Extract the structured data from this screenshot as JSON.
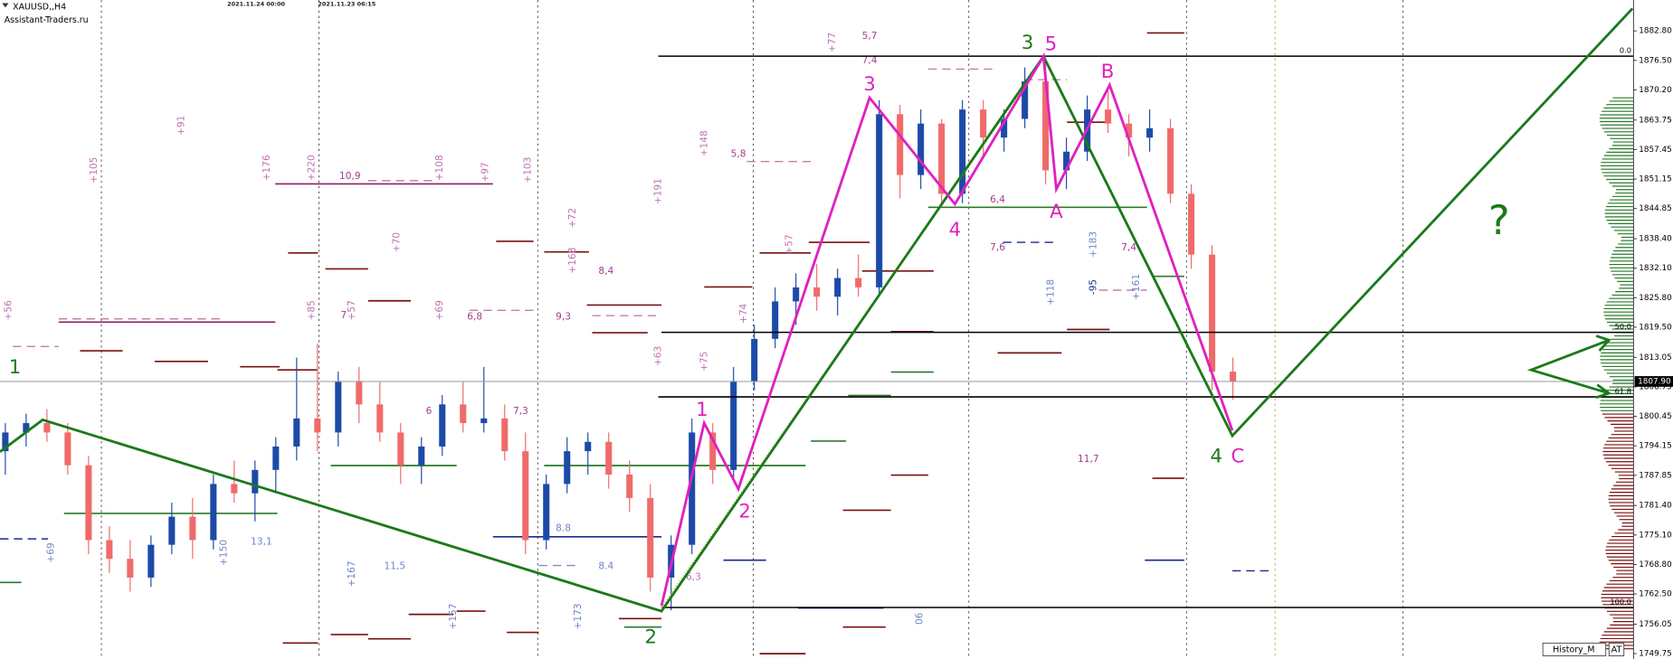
{
  "chart_data": {
    "type": "candlestick",
    "title": "XAUUSD,,H4",
    "subtitle": "Assistant-Traders.ru",
    "dates": [
      "2021.11.24 00:00",
      "2021.11.23 06:15"
    ],
    "colors": {
      "up": "#1d4aa8",
      "down": "#f06a6a"
    },
    "candles": [
      [
        1793,
        1799,
        1788,
        1797
      ],
      [
        1797,
        1801,
        1794,
        1799
      ],
      [
        1799,
        1802,
        1795,
        1797
      ],
      [
        1797,
        1799,
        1788,
        1790
      ],
      [
        1790,
        1792,
        1771,
        1774
      ],
      [
        1774,
        1777,
        1767,
        1770
      ],
      [
        1770,
        1774,
        1763,
        1766
      ],
      [
        1766,
        1775,
        1764,
        1773
      ],
      [
        1773,
        1782,
        1771,
        1779
      ],
      [
        1779,
        1783,
        1770,
        1774
      ],
      [
        1774,
        1788,
        1772,
        1786
      ],
      [
        1786,
        1791,
        1782,
        1784
      ],
      [
        1784,
        1791,
        1778,
        1789
      ],
      [
        1789,
        1796,
        1784,
        1794
      ],
      [
        1794,
        1813,
        1791,
        1800
      ],
      [
        1800,
        1816,
        1793,
        1797
      ],
      [
        1797,
        1810,
        1794,
        1808
      ],
      [
        1808,
        1811,
        1799,
        1803
      ],
      [
        1803,
        1808,
        1795,
        1797
      ],
      [
        1797,
        1799,
        1786,
        1790
      ],
      [
        1790,
        1796,
        1786,
        1794
      ],
      [
        1794,
        1805,
        1792,
        1803
      ],
      [
        1803,
        1808,
        1797,
        1799
      ],
      [
        1799,
        1811,
        1797,
        1800
      ],
      [
        1800,
        1803,
        1791,
        1793
      ],
      [
        1793,
        1797,
        1771,
        1774
      ],
      [
        1774,
        1788,
        1772,
        1786
      ],
      [
        1786,
        1796,
        1784,
        1793
      ],
      [
        1793,
        1797,
        1788,
        1795
      ],
      [
        1795,
        1797,
        1785,
        1788
      ],
      [
        1788,
        1791,
        1780,
        1783
      ],
      [
        1783,
        1786,
        1763,
        1766
      ],
      [
        1766,
        1775,
        1759,
        1773
      ],
      [
        1773,
        1800,
        1771,
        1797
      ],
      [
        1797,
        1799,
        1786,
        1789
      ],
      [
        1789,
        1811,
        1787,
        1808
      ],
      [
        1808,
        1820,
        1806,
        1817
      ],
      [
        1817,
        1828,
        1815,
        1825
      ],
      [
        1825,
        1831,
        1820,
        1828
      ],
      [
        1828,
        1833,
        1823,
        1826
      ],
      [
        1826,
        1832,
        1822,
        1830
      ],
      [
        1830,
        1835,
        1826,
        1828
      ],
      [
        1828,
        1868,
        1826,
        1865
      ],
      [
        1865,
        1867,
        1847,
        1852
      ],
      [
        1852,
        1866,
        1849,
        1863
      ],
      [
        1863,
        1864,
        1846,
        1848
      ],
      [
        1848,
        1868,
        1846,
        1866
      ],
      [
        1866,
        1868,
        1856,
        1860
      ],
      [
        1860,
        1866,
        1857,
        1864
      ],
      [
        1864,
        1875,
        1862,
        1872
      ],
      [
        1872,
        1877,
        1850,
        1853
      ],
      [
        1853,
        1860,
        1849,
        1857
      ],
      [
        1857,
        1869,
        1855,
        1866
      ],
      [
        1866,
        1870,
        1861,
        1863
      ],
      [
        1863,
        1865,
        1856,
        1860
      ],
      [
        1860,
        1866,
        1857,
        1862
      ],
      [
        1862,
        1864,
        1846,
        1848
      ],
      [
        1848,
        1850,
        1832,
        1835
      ],
      [
        1835,
        1837,
        1806,
        1810
      ],
      [
        1810,
        1813,
        1804,
        1807.9
      ]
    ],
    "ylim": [
      1748.6,
      1889.4
    ],
    "yticks": [
      {
        "value": 1882.8,
        "label": "1882.80"
      },
      {
        "value": 1876.5,
        "label": "1876.50"
      },
      {
        "value": 1870.2,
        "label": "1870.20"
      },
      {
        "value": 1863.75,
        "label": "1863.75"
      },
      {
        "value": 1857.45,
        "label": "1857.45"
      },
      {
        "value": 1851.15,
        "label": "1851.15"
      },
      {
        "value": 1844.85,
        "label": "1844.85"
      },
      {
        "value": 1838.4,
        "label": "1838.40"
      },
      {
        "value": 1832.1,
        "label": "1832.10"
      },
      {
        "value": 1825.8,
        "label": "1825.80"
      },
      {
        "value": 1819.5,
        "label": "1819.50"
      },
      {
        "value": 1813.05,
        "label": "1813.05"
      },
      {
        "value": 1806.75,
        "label": "1806.75"
      },
      {
        "value": 1800.45,
        "label": "1800.45"
      },
      {
        "value": 1794.15,
        "label": "1794.15"
      },
      {
        "value": 1787.85,
        "label": "1787.85"
      },
      {
        "value": 1781.4,
        "label": "1781.40"
      },
      {
        "value": 1775.1,
        "label": "1775.10"
      },
      {
        "value": 1768.8,
        "label": "1768.80"
      },
      {
        "value": 1762.5,
        "label": "1762.50"
      },
      {
        "value": 1756.05,
        "label": "1756.05"
      },
      {
        "value": 1749.75,
        "label": "1749.75"
      }
    ],
    "current_price": {
      "value": 1807.9,
      "label": "1807.90"
    },
    "fib_levels": [
      {
        "label": "0.0",
        "value": 1877.4
      },
      {
        "label": "50.0",
        "value": 1818.4
      },
      {
        "label": "61.8",
        "value": 1804.6
      },
      {
        "label": "100.0",
        "value": 1759.6
      }
    ],
    "annotations": [
      {
        "text": "1",
        "color": "#1a7a1a"
      },
      {
        "text": "2",
        "color": "#1a7a1a"
      },
      {
        "text": "3",
        "color": "#1a7a1a"
      },
      {
        "text": "4",
        "color": "#1a7a1a"
      },
      {
        "text": "?",
        "color": "#1a7a1a"
      },
      {
        "text": "1",
        "color": "#e020c0"
      },
      {
        "text": "2",
        "color": "#e020c0"
      },
      {
        "text": "3",
        "color": "#e020c0"
      },
      {
        "text": "4",
        "color": "#e020c0"
      },
      {
        "text": "5",
        "color": "#e020c0"
      },
      {
        "text": "A",
        "color": "#e020c0"
      },
      {
        "text": "B",
        "color": "#e020c0"
      },
      {
        "text": "C",
        "color": "#e020c0"
      }
    ],
    "indicator_labels": [
      {
        "text": "+105",
        "color": "#c070b0"
      },
      {
        "text": "+91",
        "color": "#c070b0"
      },
      {
        "text": "+176",
        "color": "#c070b0"
      },
      {
        "text": "+220",
        "color": "#c070b0"
      },
      {
        "text": "+108",
        "color": "#c070b0"
      },
      {
        "text": "+97",
        "color": "#c070b0"
      },
      {
        "text": "+103",
        "color": "#c070b0"
      },
      {
        "text": "+148",
        "color": "#c070b0"
      },
      {
        "text": "+191",
        "color": "#c070b0"
      },
      {
        "text": "+72",
        "color": "#c070b0"
      },
      {
        "text": "+168",
        "color": "#c070b0"
      },
      {
        "text": "+70",
        "color": "#c070b0"
      },
      {
        "text": "+85",
        "color": "#c070b0"
      },
      {
        "text": "+57",
        "color": "#c070b0"
      },
      {
        "text": "+69",
        "color": "#c070b0"
      },
      {
        "text": "+56",
        "color": "#c070b0"
      },
      {
        "text": "+63",
        "color": "#c070b0"
      },
      {
        "text": "+75",
        "color": "#c070b0"
      },
      {
        "text": "+57",
        "color": "#c070b0"
      },
      {
        "text": "+74",
        "color": "#c070b0"
      },
      {
        "text": "+77",
        "color": "#c070b0"
      },
      {
        "text": "10,9",
        "color": "#a0408a"
      },
      {
        "text": "5,8",
        "color": "#a0408a"
      },
      {
        "text": "6,8",
        "color": "#a0408a"
      },
      {
        "text": "9,3",
        "color": "#a0408a"
      },
      {
        "text": "8,4",
        "color": "#a0408a"
      },
      {
        "text": "7,4",
        "color": "#a0408a"
      },
      {
        "text": "5,7",
        "color": "#a0408a"
      },
      {
        "text": "6,4",
        "color": "#a0408a"
      },
      {
        "text": "7,6",
        "color": "#a0408a"
      },
      {
        "text": "7,4",
        "color": "#a0408a"
      },
      {
        "text": "11,7",
        "color": "#a0408a"
      },
      {
        "text": "7,3",
        "color": "#a0408a"
      },
      {
        "text": "6",
        "color": "#a0408a"
      },
      {
        "text": "7",
        "color": "#a0408a"
      },
      {
        "text": "13,1",
        "color": "#6f86c8"
      },
      {
        "text": "11,5",
        "color": "#6f86c8"
      },
      {
        "text": "8.8",
        "color": "#6f86c8"
      },
      {
        "text": "8.4",
        "color": "#6f86c8"
      },
      {
        "text": "6,3",
        "color": "#c070b0"
      },
      {
        "text": "+69",
        "color": "#6f86c8"
      },
      {
        "text": "+150",
        "color": "#6f86c8"
      },
      {
        "text": "+167",
        "color": "#6f86c8"
      },
      {
        "text": "+157",
        "color": "#6f86c8"
      },
      {
        "text": "+173",
        "color": "#6f86c8"
      },
      {
        "text": "-95",
        "color": "#1a2a8a"
      },
      {
        "text": "+118",
        "color": "#6f86c8"
      },
      {
        "text": "+183",
        "color": "#6f86c8"
      },
      {
        "text": "+161",
        "color": "#6f86c8"
      },
      {
        "text": "06",
        "color": "#6f86c8"
      }
    ],
    "buttons": [
      "History_M",
      "AT"
    ]
  }
}
